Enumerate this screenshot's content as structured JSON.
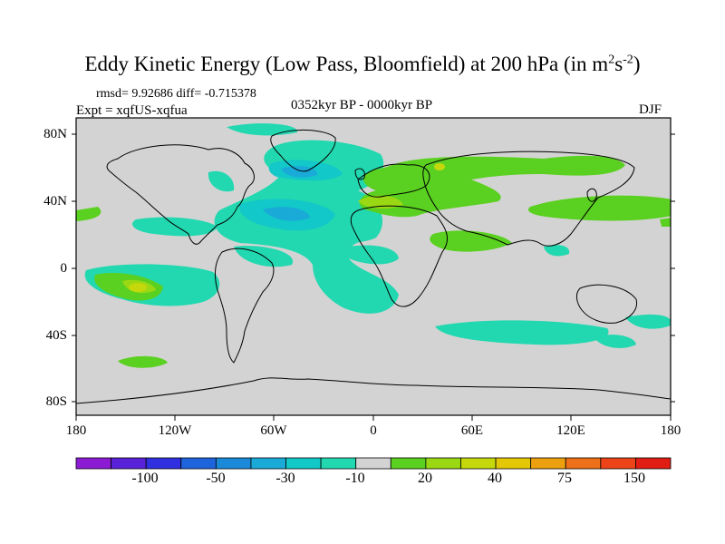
{
  "figure": {
    "title_main": "Eddy Kinetic Energy (Low Pass, Bloomfield) at 200 hPa (in m",
    "title_sup_1": "2",
    "title_s": "s",
    "title_sup_2": "-2",
    "title_close": ")",
    "stats": "rmsd= 9.92686 diff= -0.715378",
    "experiment": "Expt = xqfUS-xqfua",
    "period": "0352kyr BP - 0000kyr BP",
    "season": "DJF"
  },
  "map": {
    "lat_labels": [
      "80N",
      "40N",
      "0",
      "40S",
      "80S"
    ],
    "lon_labels": [
      "180",
      "120W",
      "60W",
      "0",
      "60E",
      "120E",
      "180"
    ],
    "background_color": "#d3d3d3"
  },
  "colorbar": {
    "colors": [
      "#8c1cd4",
      "#5a22d8",
      "#3030e0",
      "#1e64dc",
      "#1a8ad8",
      "#1aaad8",
      "#12c8c8",
      "#22d8b0",
      "#d3d3d3",
      "#5ad020",
      "#9ad814",
      "#c4d80c",
      "#e4c808",
      "#eca010",
      "#ee7018",
      "#ec4418",
      "#e01e14"
    ],
    "labels": [
      "-100",
      "-50",
      "-30",
      "-10",
      "20",
      "40",
      "75",
      "150"
    ]
  }
}
